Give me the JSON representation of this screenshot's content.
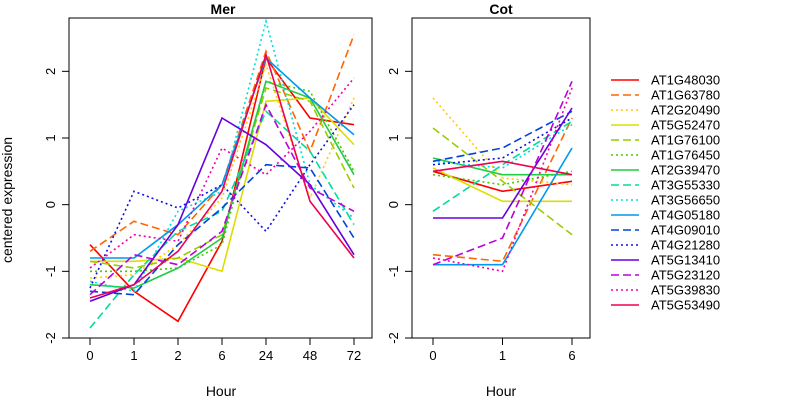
{
  "chart_data": {
    "type": "line",
    "ylabel": "centered expression",
    "yticks": [
      -2,
      -1,
      0,
      1,
      2
    ],
    "ylim": [
      -2.0,
      2.8
    ],
    "grid": false,
    "legend_placement": "right",
    "series": [
      {
        "name": "AT1G48030",
        "color": "#FF0000",
        "dash": "solid"
      },
      {
        "name": "AT1G63780",
        "color": "#FF6600",
        "dash": "dashed"
      },
      {
        "name": "AT2G20490",
        "color": "#FFCC00",
        "dash": "dotted"
      },
      {
        "name": "AT5G52470",
        "color": "#DDDD00",
        "dash": "solid"
      },
      {
        "name": "AT1G76100",
        "color": "#99CC00",
        "dash": "dashed"
      },
      {
        "name": "AT1G76450",
        "color": "#44CC00",
        "dash": "dotted"
      },
      {
        "name": "AT2G39470",
        "color": "#22CC44",
        "dash": "solid"
      },
      {
        "name": "AT3G55330",
        "color": "#00DD99",
        "dash": "dashed"
      },
      {
        "name": "AT3G56650",
        "color": "#00DDDD",
        "dash": "dotted"
      },
      {
        "name": "AT4G05180",
        "color": "#0099EE",
        "dash": "solid"
      },
      {
        "name": "AT4G09010",
        "color": "#0044DD",
        "dash": "dashed"
      },
      {
        "name": "AT4G21280",
        "color": "#1111DD",
        "dash": "dotted"
      },
      {
        "name": "AT5G13410",
        "color": "#6600DD",
        "dash": "solid"
      },
      {
        "name": "AT5G23120",
        "color": "#BB00DD",
        "dash": "dashed"
      },
      {
        "name": "AT5G39830",
        "color": "#EE00AA",
        "dash": "dotted"
      },
      {
        "name": "AT5G53490",
        "color": "#EE0055",
        "dash": "solid"
      }
    ],
    "panels": [
      {
        "title": "Mer",
        "xlabel": "Hour",
        "categories": [
          "0",
          "1",
          "2",
          "6",
          "24",
          "48",
          "72"
        ],
        "values": [
          [
            -0.6,
            -1.3,
            -1.75,
            -0.55,
            2.2,
            1.3,
            1.2
          ],
          [
            -0.7,
            -0.25,
            -0.45,
            0.3,
            2.3,
            0.8,
            2.55
          ],
          [
            -1.1,
            -1.05,
            -0.6,
            0.1,
            2.1,
            0.1,
            1.6
          ],
          [
            -0.85,
            -0.85,
            -0.8,
            -1.0,
            1.55,
            1.6,
            0.9
          ],
          [
            -0.85,
            -0.95,
            -0.8,
            -0.45,
            1.75,
            1.55,
            0.25
          ],
          [
            -1.0,
            -1.0,
            -0.95,
            -0.6,
            1.85,
            1.7,
            0.5
          ],
          [
            -1.2,
            -1.25,
            -0.95,
            -0.5,
            1.85,
            1.6,
            0.45
          ],
          [
            -1.85,
            -1.05,
            -0.4,
            -0.1,
            1.4,
            0.8,
            -0.3
          ],
          [
            -1.15,
            -1.3,
            -0.1,
            0.2,
            2.75,
            0.3,
            -0.2
          ],
          [
            -0.8,
            -0.8,
            -0.3,
            0.3,
            2.2,
            1.6,
            1.05
          ],
          [
            -1.3,
            -1.35,
            -0.6,
            -0.05,
            0.6,
            0.55,
            -0.5
          ],
          [
            -1.25,
            0.2,
            -0.05,
            0.3,
            -0.4,
            0.6,
            1.5
          ],
          [
            -1.45,
            -1.2,
            -0.3,
            1.3,
            0.9,
            0.3,
            -0.75
          ],
          [
            -1.35,
            -0.75,
            -0.9,
            -0.4,
            1.5,
            0.25,
            -0.1
          ],
          [
            -0.95,
            -0.45,
            -0.55,
            0.85,
            0.45,
            1.1,
            1.9
          ],
          [
            -1.4,
            -1.2,
            -0.7,
            0.2,
            2.25,
            0.05,
            -0.8
          ]
        ]
      },
      {
        "title": "Cot",
        "xlabel": "Hour",
        "categories": [
          "0",
          "1",
          "6"
        ],
        "values": [
          [
            0.5,
            0.2,
            0.35
          ],
          [
            -0.75,
            -0.85,
            1.3
          ],
          [
            1.6,
            0.4,
            0.3
          ],
          [
            0.55,
            0.05,
            0.05
          ],
          [
            1.15,
            0.35,
            -0.45
          ],
          [
            0.45,
            0.3,
            0.5
          ],
          [
            0.7,
            0.45,
            0.45
          ],
          [
            -0.1,
            0.6,
            1.25
          ],
          [
            0.65,
            0.55,
            1.2
          ],
          [
            -0.9,
            -0.9,
            0.85
          ],
          [
            0.65,
            0.85,
            1.4
          ],
          [
            0.6,
            0.7,
            1.3
          ],
          [
            -0.2,
            -0.2,
            1.45
          ],
          [
            -0.9,
            -0.5,
            1.85
          ],
          [
            -0.8,
            -1.0,
            1.75
          ],
          [
            0.5,
            0.65,
            0.45
          ]
        ]
      }
    ]
  }
}
